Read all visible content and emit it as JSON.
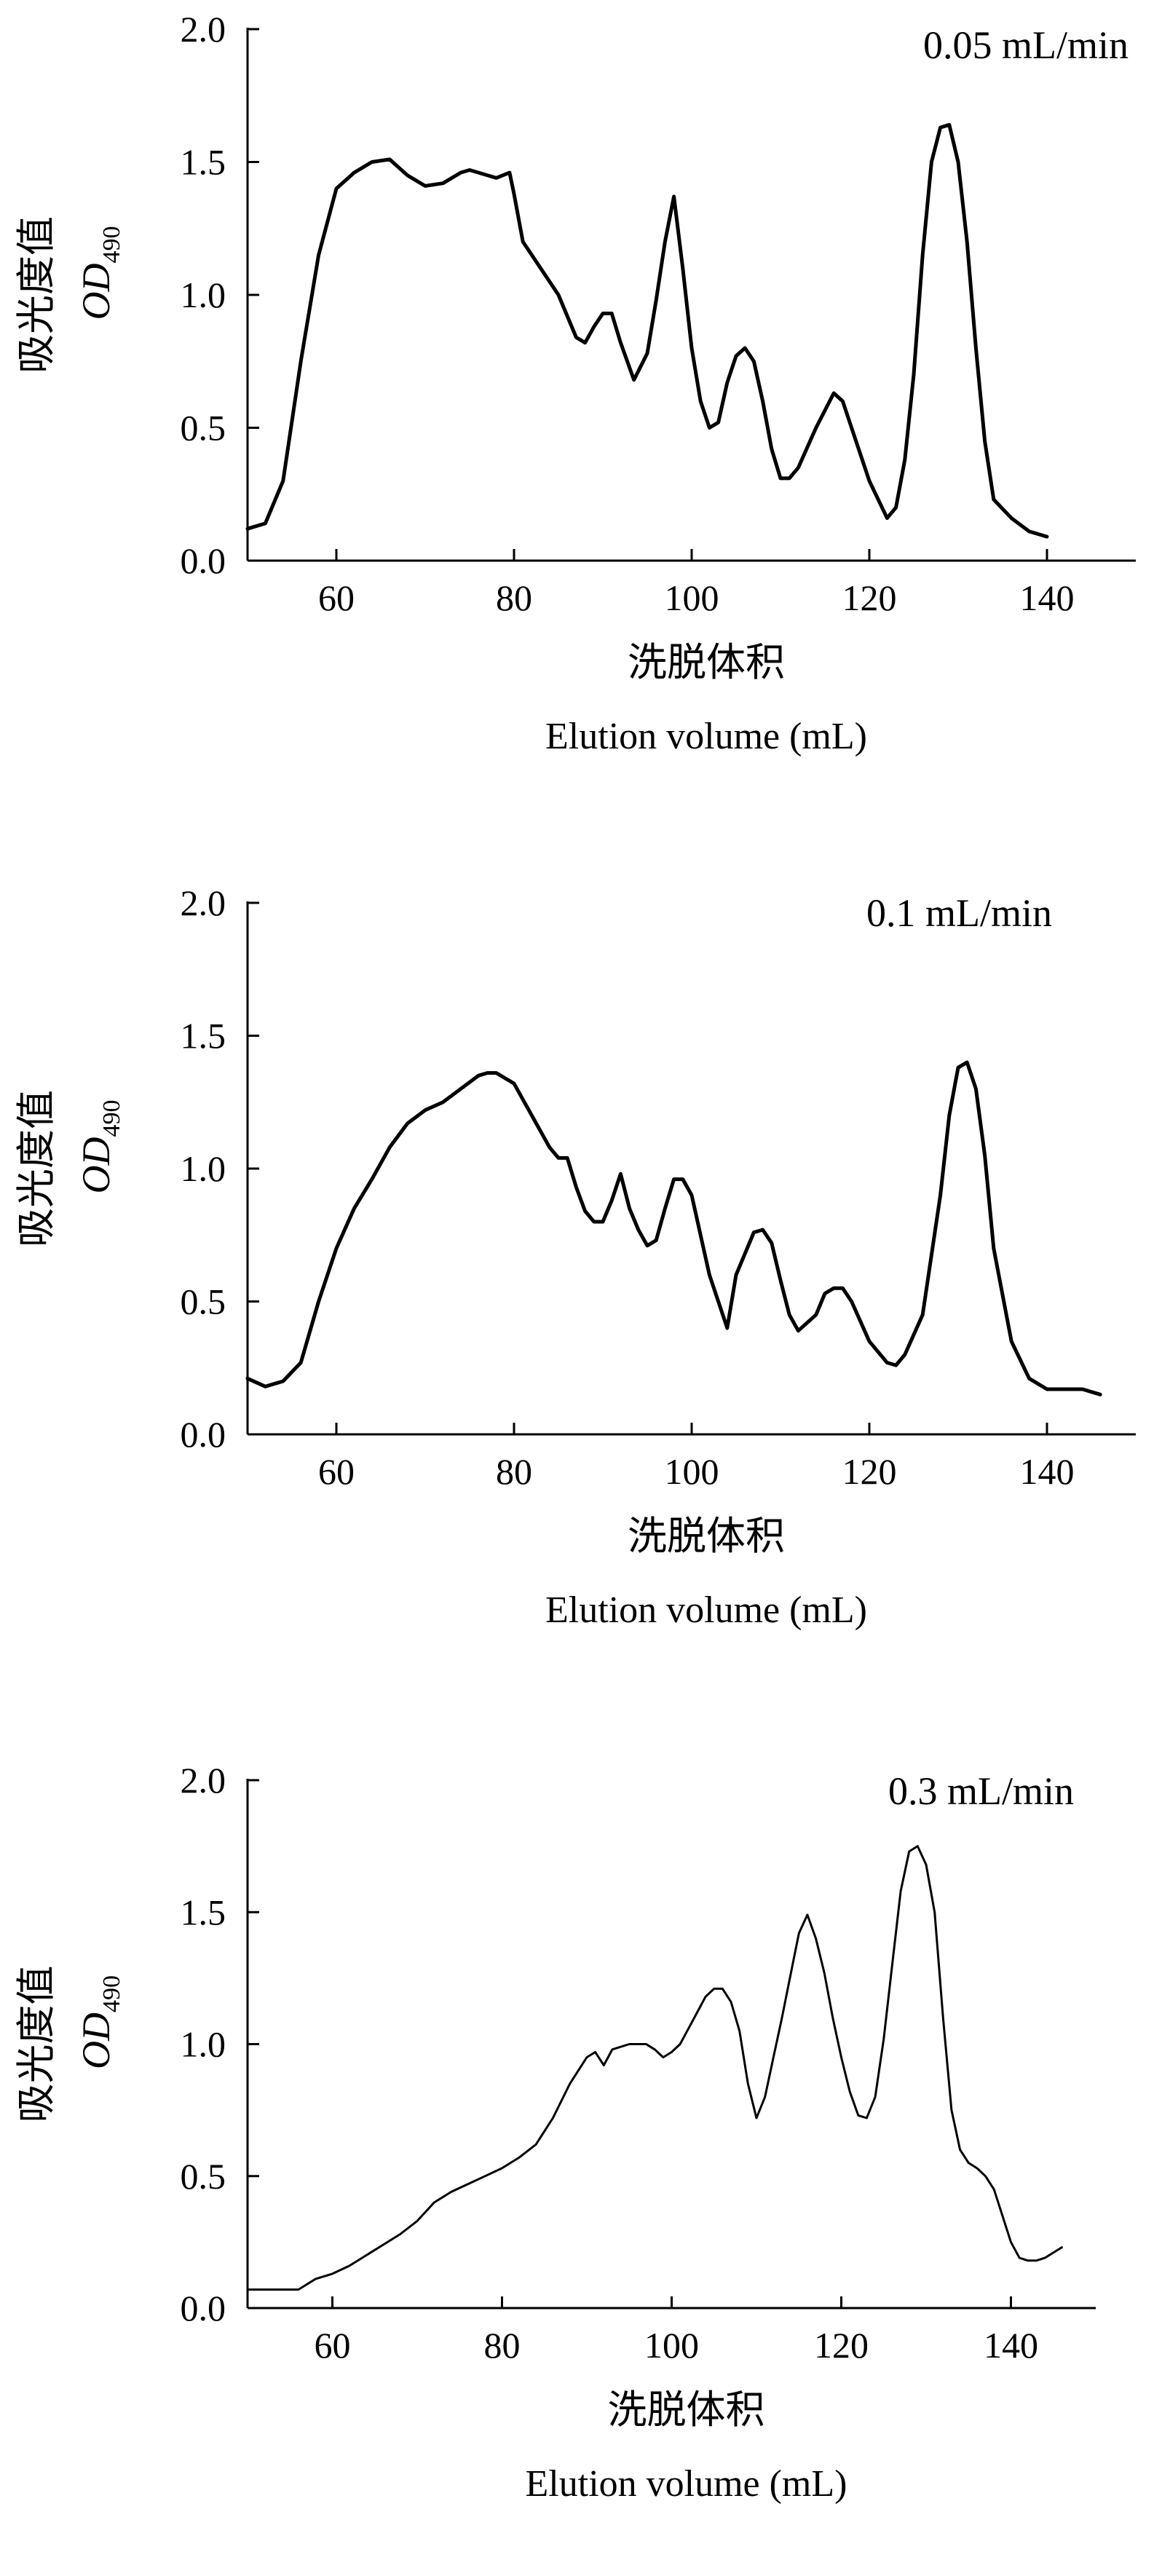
{
  "chart_data": [
    {
      "type": "line",
      "annotation": "0.05 mL/min",
      "ylabel_cn": "吸光度值",
      "ylabel_main": "OD",
      "ylabel_sub": "490",
      "xlabel_cn": "洗脱体积",
      "xlabel": "Elution volume (mL)",
      "xlim": [
        50,
        150
      ],
      "ylim": [
        0,
        2.0
      ],
      "xticks": [
        "60",
        "80",
        "100",
        "120",
        "140"
      ],
      "yticks": [
        "0.0",
        "0.5",
        "1.0",
        "1.5",
        "2.0"
      ],
      "grid": false,
      "series": [
        {
          "x": [
            50,
            52,
            54,
            56,
            58,
            60,
            62,
            64,
            66,
            68,
            70,
            72,
            74,
            75,
            76,
            78,
            79.5,
            80,
            81,
            83,
            85,
            87,
            88,
            89,
            90,
            91,
            92,
            93.5,
            95,
            96,
            97,
            98,
            99,
            100,
            101,
            102,
            103,
            104,
            105,
            106,
            107,
            108,
            109,
            110,
            111,
            112,
            114,
            116,
            117,
            118,
            120,
            122,
            123,
            124,
            125,
            126,
            127,
            128,
            129,
            130,
            131,
            132,
            133,
            134,
            136,
            138,
            140
          ],
          "y": [
            0.12,
            0.14,
            0.3,
            0.75,
            1.15,
            1.4,
            1.46,
            1.5,
            1.51,
            1.45,
            1.41,
            1.42,
            1.46,
            1.47,
            1.46,
            1.44,
            1.46,
            1.38,
            1.2,
            1.1,
            1.0,
            0.84,
            0.82,
            0.88,
            0.93,
            0.93,
            0.82,
            0.68,
            0.78,
            0.98,
            1.2,
            1.37,
            1.1,
            0.8,
            0.6,
            0.5,
            0.52,
            0.67,
            0.77,
            0.8,
            0.75,
            0.6,
            0.42,
            0.31,
            0.31,
            0.35,
            0.5,
            0.63,
            0.6,
            0.5,
            0.3,
            0.16,
            0.2,
            0.38,
            0.7,
            1.15,
            1.5,
            1.63,
            1.64,
            1.5,
            1.2,
            0.8,
            0.45,
            0.23,
            0.16,
            0.11,
            0.09
          ]
        }
      ]
    },
    {
      "type": "line",
      "annotation": "0.1 mL/min",
      "ylabel_cn": "吸光度值",
      "ylabel_main": "OD",
      "ylabel_sub": "490",
      "xlabel_cn": "洗脱体积",
      "xlabel": "Elution volume (mL)",
      "xlim": [
        50,
        150
      ],
      "ylim": [
        0,
        2.0
      ],
      "xticks": [
        "60",
        "80",
        "100",
        "120",
        "140"
      ],
      "yticks": [
        "0.0",
        "0.5",
        "1.0",
        "1.5",
        "2.0"
      ],
      "grid": false,
      "series": [
        {
          "x": [
            50,
            52,
            54,
            56,
            58,
            60,
            62,
            64,
            66,
            68,
            70,
            72,
            74,
            76,
            77,
            78,
            80,
            82,
            84,
            85,
            86,
            87,
            88,
            89,
            90,
            91,
            92,
            93,
            94,
            95,
            96,
            97,
            98,
            99,
            100,
            101,
            102,
            104,
            105,
            106,
            107,
            108,
            109,
            110,
            111,
            112,
            114,
            115,
            116,
            117,
            118,
            120,
            122,
            123,
            124,
            126,
            128,
            129,
            130,
            131,
            132,
            133,
            134,
            136,
            138,
            140,
            142,
            144,
            146
          ],
          "y": [
            0.21,
            0.18,
            0.2,
            0.27,
            0.5,
            0.7,
            0.85,
            0.96,
            1.08,
            1.17,
            1.22,
            1.25,
            1.3,
            1.35,
            1.36,
            1.36,
            1.32,
            1.2,
            1.08,
            1.04,
            1.04,
            0.93,
            0.84,
            0.8,
            0.8,
            0.88,
            0.98,
            0.85,
            0.77,
            0.71,
            0.73,
            0.85,
            0.96,
            0.96,
            0.9,
            0.75,
            0.6,
            0.4,
            0.6,
            0.68,
            0.76,
            0.77,
            0.72,
            0.58,
            0.45,
            0.39,
            0.45,
            0.53,
            0.55,
            0.55,
            0.5,
            0.35,
            0.27,
            0.26,
            0.3,
            0.45,
            0.9,
            1.2,
            1.38,
            1.4,
            1.3,
            1.05,
            0.7,
            0.35,
            0.21,
            0.17,
            0.17,
            0.17,
            0.15
          ]
        }
      ]
    },
    {
      "type": "line",
      "annotation": "0.3 mL/min",
      "ylabel_cn": "吸光度值",
      "ylabel_main": "OD",
      "ylabel_sub": "490",
      "xlabel_cn": "洗脱体积",
      "xlabel": "Elution volume (mL)",
      "xlim": [
        50,
        150
      ],
      "ylim": [
        0,
        2.0
      ],
      "xticks": [
        "60",
        "80",
        "100",
        "120",
        "140"
      ],
      "yticks": [
        "0.0",
        "0.5",
        "1.0",
        "1.5",
        "2.0"
      ],
      "grid": false,
      "series": [
        {
          "x": [
            50,
            52,
            54,
            56,
            58,
            60,
            62,
            64,
            66,
            68,
            70,
            72,
            74,
            76,
            78,
            80,
            82,
            84,
            86,
            88,
            90,
            91,
            92,
            93,
            95,
            97,
            98,
            99,
            100,
            101,
            102,
            103,
            104,
            105,
            106,
            107,
            108,
            109,
            110,
            111,
            112,
            113,
            114,
            115,
            116,
            117,
            118,
            119,
            120,
            121,
            122,
            123,
            124,
            125,
            126,
            127,
            128,
            129,
            130,
            131,
            132,
            133,
            134,
            135,
            136,
            137,
            138,
            139,
            140,
            141,
            142,
            143,
            144,
            145,
            146
          ],
          "y": [
            0.07,
            0.07,
            0.07,
            0.07,
            0.11,
            0.13,
            0.16,
            0.2,
            0.24,
            0.28,
            0.33,
            0.4,
            0.44,
            0.47,
            0.5,
            0.53,
            0.57,
            0.62,
            0.72,
            0.85,
            0.95,
            0.97,
            0.92,
            0.98,
            1.0,
            1.0,
            0.98,
            0.95,
            0.97,
            1.0,
            1.06,
            1.12,
            1.18,
            1.21,
            1.21,
            1.16,
            1.05,
            0.85,
            0.72,
            0.8,
            0.95,
            1.1,
            1.26,
            1.42,
            1.49,
            1.4,
            1.27,
            1.1,
            0.95,
            0.82,
            0.73,
            0.72,
            0.8,
            1.02,
            1.3,
            1.58,
            1.73,
            1.75,
            1.68,
            1.5,
            1.1,
            0.75,
            0.6,
            0.55,
            0.53,
            0.5,
            0.45,
            0.35,
            0.25,
            0.19,
            0.18,
            0.18,
            0.19,
            0.21,
            0.23
          ]
        }
      ]
    }
  ]
}
